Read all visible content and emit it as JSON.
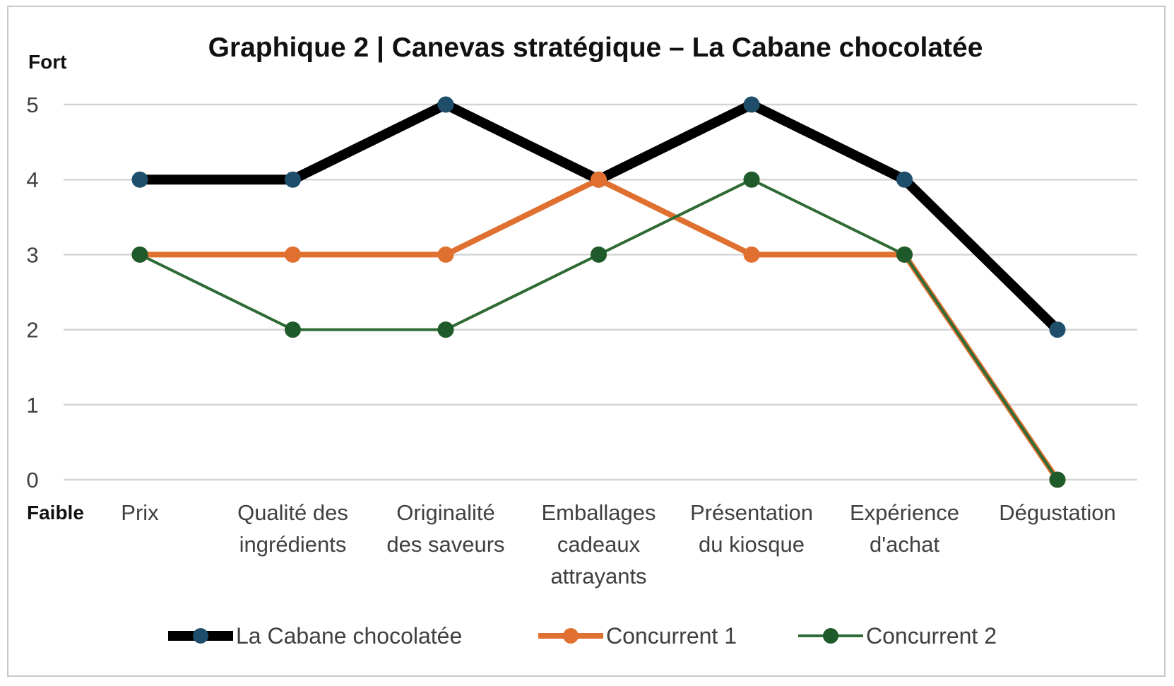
{
  "chart_data": {
    "type": "line",
    "title": "Graphique 2 | Canevas stratégique – La Cabane chocolatée",
    "ylabel_high": "Fort",
    "ylabel_low": "Faible",
    "ylim": [
      0,
      5
    ],
    "yticks": [
      "0",
      "1",
      "2",
      "3",
      "4",
      "5"
    ],
    "grid": true,
    "legend_position": "bottom",
    "categories": [
      [
        "Prix"
      ],
      [
        "Qualité des",
        "ingrédients"
      ],
      [
        "Originalité",
        "des saveurs"
      ],
      [
        "Emballages",
        "cadeaux",
        "attrayants"
      ],
      [
        "Présentation",
        "du kiosque"
      ],
      [
        "Expérience",
        "d'achat"
      ],
      [
        "Dégustation"
      ]
    ],
    "series": [
      {
        "name": "La Cabane chocolatée",
        "values": [
          4,
          4,
          5,
          4,
          5,
          4,
          2
        ],
        "line_color": "#000000",
        "marker_color": "#1f4e6b"
      },
      {
        "name": "Concurrent 1",
        "values": [
          3,
          3,
          3,
          4,
          3,
          3,
          0
        ],
        "line_color": "#e07030",
        "marker_color": "#e07030"
      },
      {
        "name": "Concurrent 2",
        "values": [
          3,
          2,
          2,
          3,
          4,
          3,
          0
        ],
        "line_color": "#2e6b34",
        "marker_color": "#1f5a2a"
      }
    ]
  }
}
